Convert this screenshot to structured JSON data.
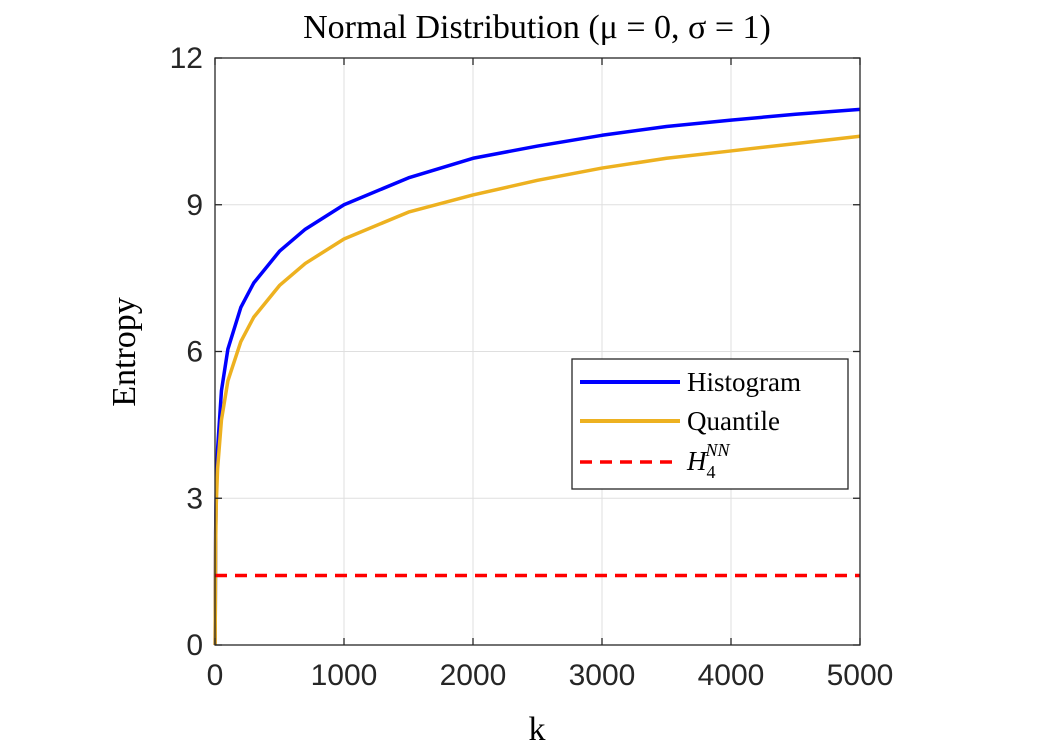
{
  "chart_data": {
    "type": "line",
    "title": "Normal Distribution (μ = 0, σ = 1)",
    "xlabel": "k",
    "ylabel": "Entropy",
    "xlim": [
      0,
      5000
    ],
    "ylim": [
      0,
      12
    ],
    "xticks": [
      0,
      1000,
      2000,
      3000,
      4000,
      5000
    ],
    "xtick_labels": [
      "0",
      "1000",
      "2000",
      "3000",
      "4000",
      "5000"
    ],
    "yticks": [
      0,
      3,
      6,
      9,
      12
    ],
    "ytick_labels": [
      "0",
      "3",
      "6",
      "9",
      "12"
    ],
    "grid": true,
    "legend_position": "center-right",
    "series": [
      {
        "name": "Histogram",
        "color": "#0000ff",
        "style": "solid",
        "x": [
          1,
          5,
          10,
          20,
          50,
          100,
          200,
          300,
          500,
          700,
          1000,
          1500,
          2000,
          2500,
          3000,
          3500,
          4000,
          4500,
          5000
        ],
        "y": [
          0,
          2.3,
          3.2,
          4.0,
          5.2,
          6.05,
          6.9,
          7.4,
          8.05,
          8.5,
          9.0,
          9.55,
          9.95,
          10.2,
          10.42,
          10.6,
          10.73,
          10.85,
          10.95
        ]
      },
      {
        "name": "Quantile",
        "color": "#edb120",
        "style": "solid",
        "x": [
          1,
          5,
          10,
          20,
          50,
          100,
          200,
          300,
          500,
          700,
          1000,
          1500,
          2000,
          2500,
          3000,
          3500,
          4000,
          4500,
          5000
        ],
        "y": [
          0,
          2.1,
          2.9,
          3.6,
          4.6,
          5.4,
          6.2,
          6.7,
          7.35,
          7.8,
          8.3,
          8.85,
          9.2,
          9.5,
          9.75,
          9.95,
          10.1,
          10.25,
          10.4
        ]
      },
      {
        "name_base": "H",
        "name_sub": "4",
        "name_sup": "NN",
        "color": "#ff0000",
        "style": "dashed",
        "x": [
          0,
          5000
        ],
        "y": [
          1.42,
          1.42
        ]
      }
    ]
  }
}
